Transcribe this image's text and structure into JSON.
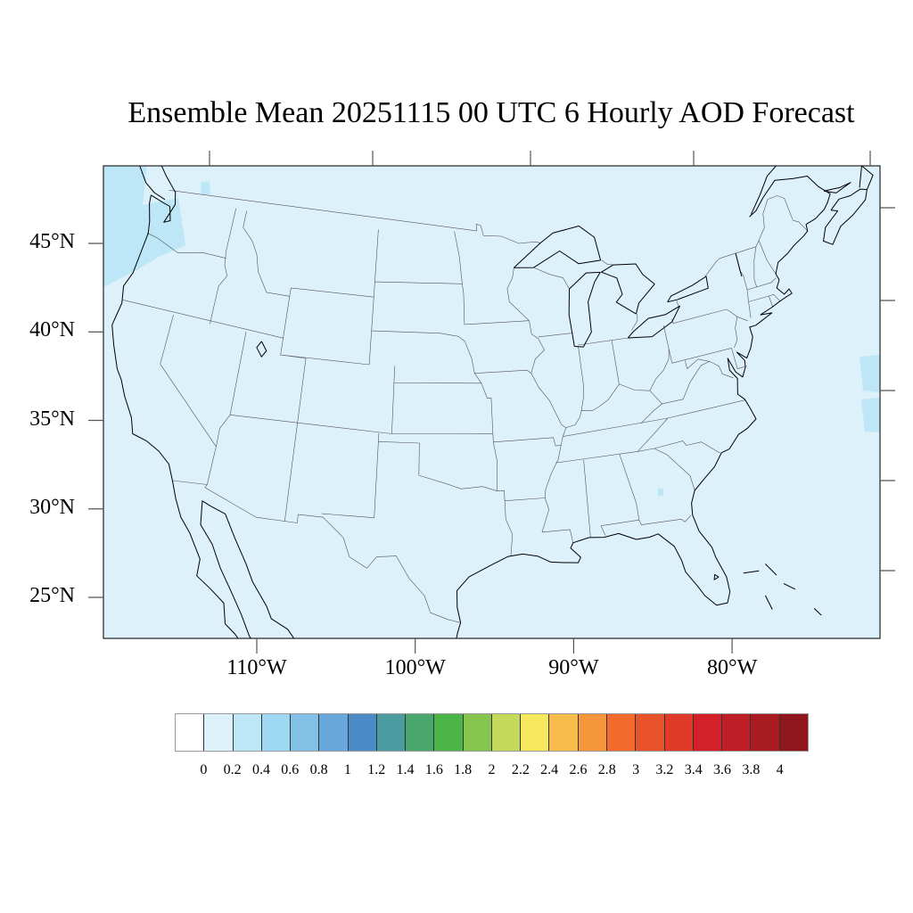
{
  "title": "Ensemble Mean 20251115 00 UTC 6 Hourly AOD Forecast",
  "map": {
    "projection": "lambert-conformal",
    "background_fill_color": "#ddf1fa",
    "patch_fill_color": "#bde6f7",
    "coastline_color": "#000000",
    "boundary_color": "#555555",
    "lat_labels": [
      {
        "value": 45,
        "text": "45°N"
      },
      {
        "value": 40,
        "text": "40°N"
      },
      {
        "value": 35,
        "text": "35°N"
      },
      {
        "value": 30,
        "text": "30°N"
      },
      {
        "value": 25,
        "text": "25°N"
      }
    ],
    "lon_labels": [
      {
        "value": -110,
        "text": "110°W"
      },
      {
        "value": -100,
        "text": "100°W"
      },
      {
        "value": -90,
        "text": "90°W"
      },
      {
        "value": -80,
        "text": "80°W"
      }
    ]
  },
  "colorbar": {
    "colors": [
      "#ffffff",
      "#ddf1fa",
      "#bde6f7",
      "#9fd8f3",
      "#82c0e6",
      "#68a8da",
      "#4a8bc8",
      "#4a9ca0",
      "#49a76e",
      "#4bb548",
      "#86c54d",
      "#c5d95a",
      "#f6e85c",
      "#f7bc4c",
      "#f6963c",
      "#f26b2c",
      "#e9532b",
      "#e03b28",
      "#d42028",
      "#be1e26",
      "#a81c22",
      "#8f161c"
    ],
    "labels": [
      "0",
      "0.2",
      "0.4",
      "0.6",
      "0.8",
      "1",
      "1.2",
      "1.4",
      "1.6",
      "1.8",
      "2",
      "2.2",
      "2.4",
      "2.6",
      "2.8",
      "3",
      "3.2",
      "3.4",
      "3.6",
      "3.8",
      "4"
    ]
  }
}
